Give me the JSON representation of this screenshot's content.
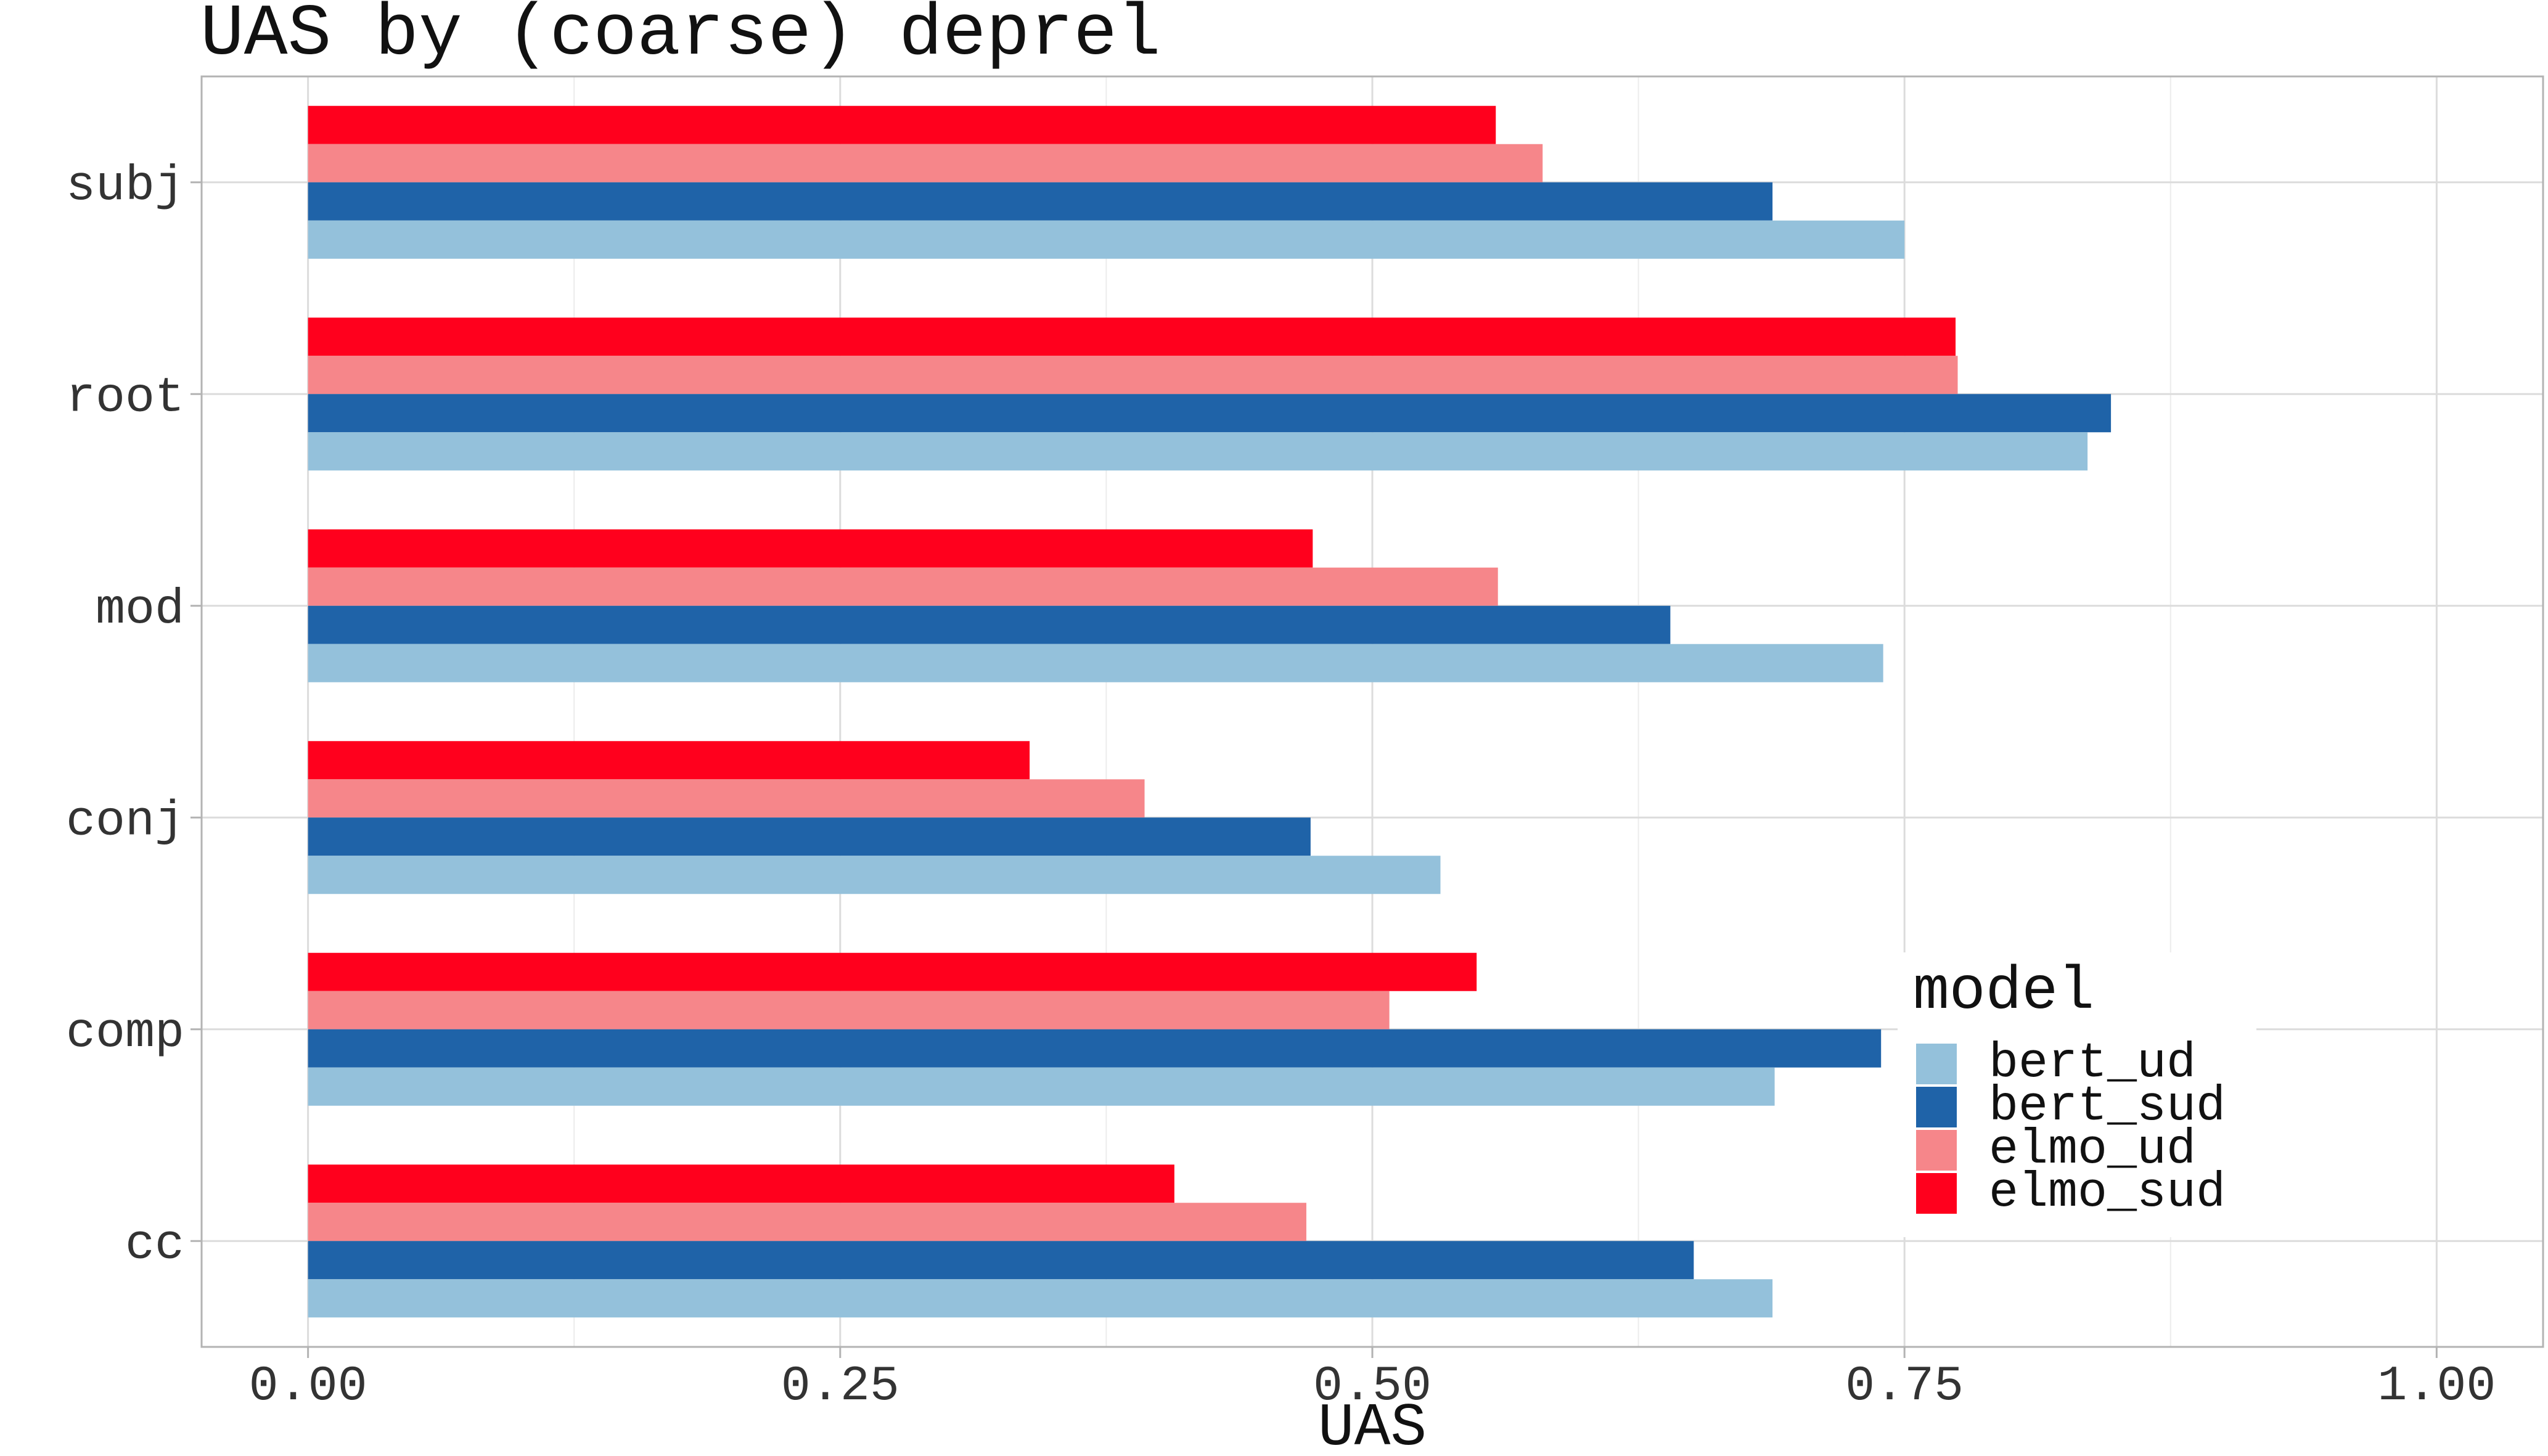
{
  "chart_data": {
    "type": "bar",
    "orientation": "horizontal",
    "title": "UAS by (coarse) deprel",
    "xlabel": "UAS",
    "ylabel": "",
    "xlim": [
      -0.05,
      1.05
    ],
    "xticks": [
      0.0,
      0.25,
      0.5,
      0.75,
      1.0
    ],
    "xtick_labels": [
      "0.00",
      "0.25",
      "0.50",
      "0.75",
      "1.00"
    ],
    "categories": [
      "subj",
      "root",
      "mod",
      "conj",
      "comp",
      "cc"
    ],
    "grid": true,
    "legend": {
      "title": "model",
      "placement": "bottom-right"
    },
    "series": [
      {
        "name": "bert_ud",
        "color": "#94c1db",
        "values": [
          0.75,
          0.836,
          0.74,
          0.532,
          0.689,
          0.688
        ]
      },
      {
        "name": "bert_sud",
        "color": "#1f63a8",
        "values": [
          0.688,
          0.847,
          0.64,
          0.471,
          0.739,
          0.651
        ]
      },
      {
        "name": "elmo_ud",
        "color": "#f6868a",
        "values": [
          0.58,
          0.775,
          0.559,
          0.393,
          0.508,
          0.469
        ]
      },
      {
        "name": "elmo_sud",
        "color": "#ff001d",
        "values": [
          0.558,
          0.774,
          0.472,
          0.339,
          0.549,
          0.407
        ]
      }
    ]
  }
}
